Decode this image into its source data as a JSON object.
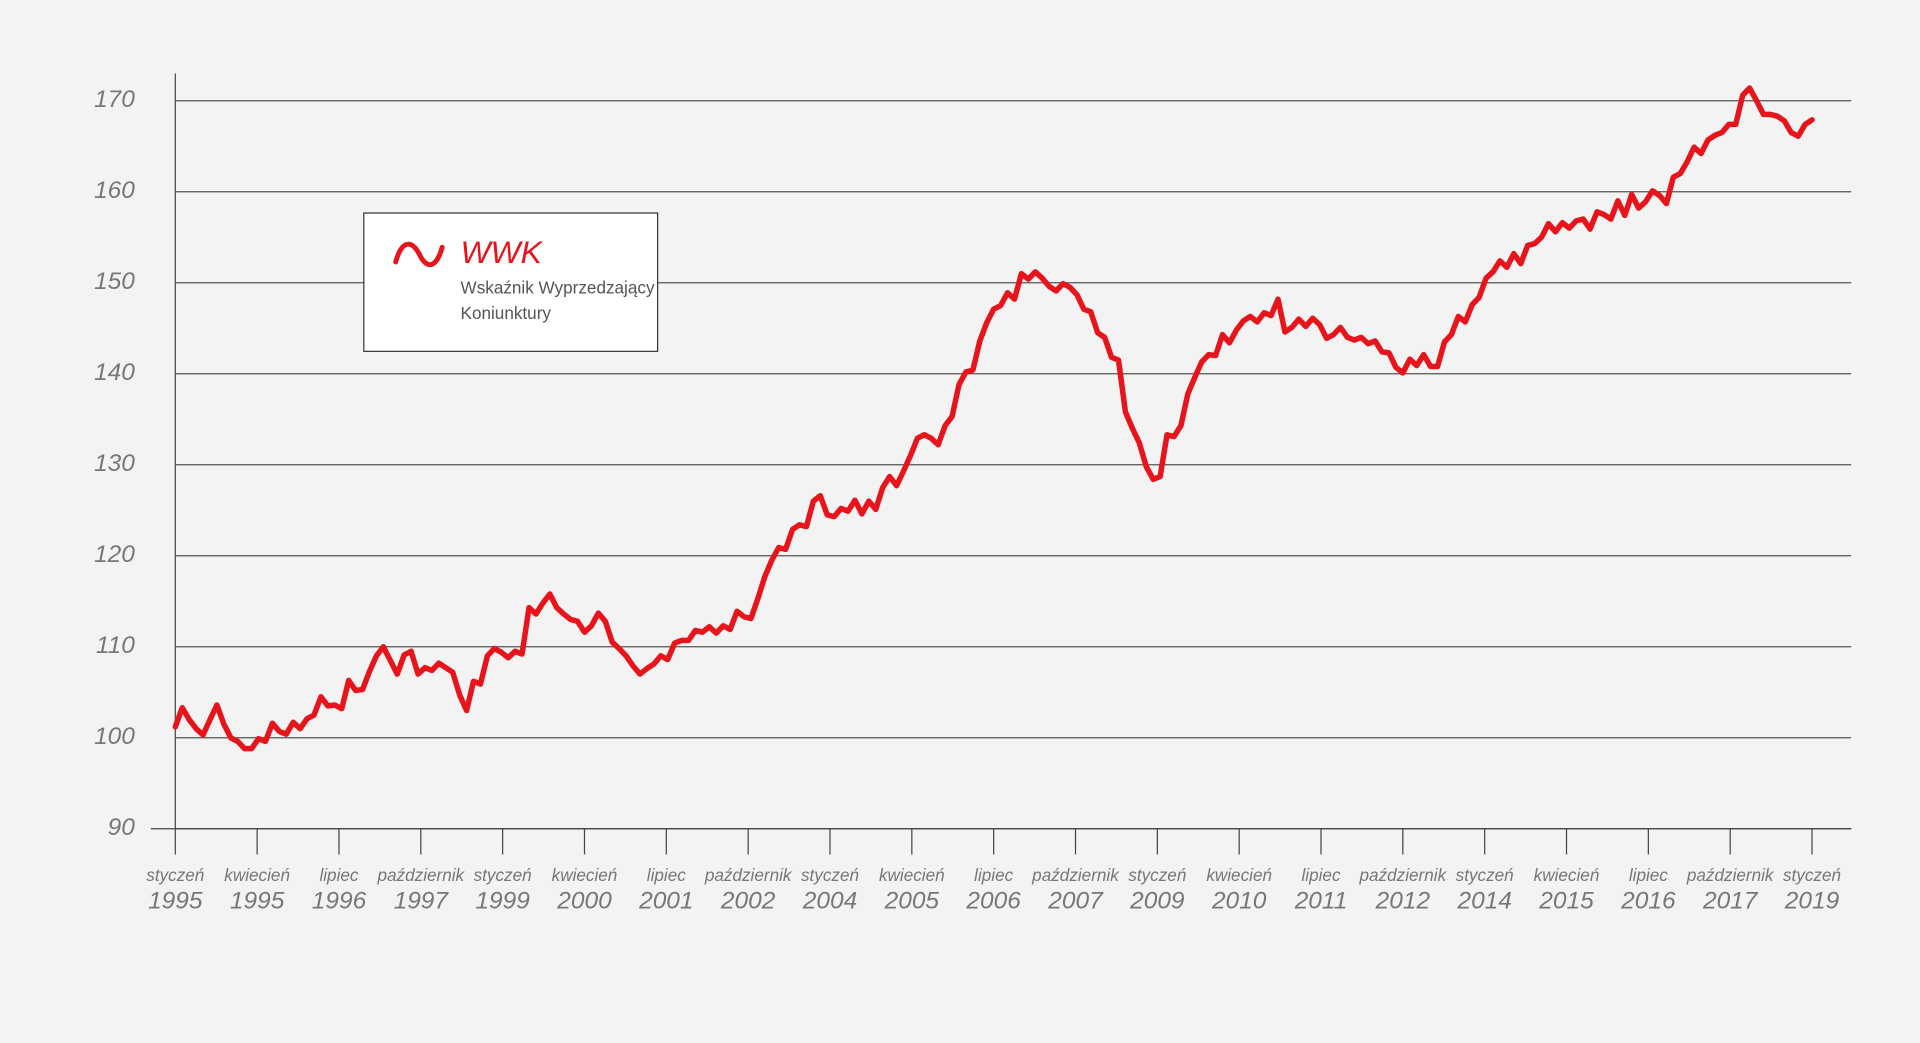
{
  "chart_data": {
    "type": "line",
    "legend_description": [
      "Wskaźnik Wyprzedzający",
      "Koniunktury"
    ],
    "x_labels": [
      {
        "month": "styczeń",
        "year": "1995"
      },
      {
        "month": "kwiecień",
        "year": "1995"
      },
      {
        "month": "lipiec",
        "year": "1996"
      },
      {
        "month": "październik",
        "year": "1997"
      },
      {
        "month": "styczeń",
        "year": "1999"
      },
      {
        "month": "kwiecień",
        "year": "2000"
      },
      {
        "month": "lipiec",
        "year": "2001"
      },
      {
        "month": "październik",
        "year": "2002"
      },
      {
        "month": "styczeń",
        "year": "2004"
      },
      {
        "month": "kwiecień",
        "year": "2005"
      },
      {
        "month": "lipiec",
        "year": "2006"
      },
      {
        "month": "październik",
        "year": "2007"
      },
      {
        "month": "styczeń",
        "year": "2009"
      },
      {
        "month": "kwiecień",
        "year": "2010"
      },
      {
        "month": "lipiec",
        "year": "2011"
      },
      {
        "month": "październik",
        "year": "2012"
      },
      {
        "month": "styczeń",
        "year": "2014"
      },
      {
        "month": "kwiecień",
        "year": "2015"
      },
      {
        "month": "lipiec",
        "year": "2016"
      },
      {
        "month": "październik",
        "year": "2017"
      },
      {
        "month": "styczeń",
        "year": "2019"
      }
    ],
    "series": [
      {
        "name": "WWK",
        "color": "#e8141b",
        "values": [
          101.2,
          103.3,
          102,
          101,
          100.3,
          102,
          103.6,
          101.5,
          100,
          99.6,
          98.8,
          98.8,
          99.9,
          99.6,
          101.6,
          100.7,
          100.4,
          101.7,
          101,
          102.1,
          102.5,
          104.5,
          103.5,
          103.6,
          103.2,
          106.3,
          105.2,
          105.3,
          107.3,
          109,
          110,
          108.5,
          107,
          109.1,
          109.5,
          107,
          107.7,
          107.4,
          108.2,
          107.7,
          107.2,
          104.7,
          103,
          106.2,
          105.9,
          109,
          109.8,
          109.4,
          108.8,
          109.5,
          109.2,
          114.3,
          113.6,
          114.8,
          115.8,
          114.3,
          113.6,
          113,
          112.8,
          111.6,
          112.3,
          113.7,
          112.8,
          110.5,
          109.8,
          109,
          107.9,
          107,
          107.6,
          108.1,
          109,
          108.6,
          110.4,
          110.7,
          110.7,
          111.8,
          111.6,
          112.2,
          111.5,
          112.3,
          111.9,
          113.9,
          113.3,
          113.1,
          115.3,
          117.7,
          119.5,
          120.9,
          120.7,
          122.9,
          123.4,
          123.2,
          126,
          126.6,
          124.5,
          124.3,
          125.2,
          124.9,
          126.1,
          124.6,
          126,
          125.1,
          127.5,
          128.7,
          127.7,
          129.3,
          131,
          132.9,
          133.3,
          132.9,
          132.2,
          134.3,
          135.3,
          138.8,
          140.2,
          140.4,
          143.6,
          145.6,
          147.1,
          147.5,
          148.9,
          148.2,
          151,
          150.4,
          151.2,
          150.5,
          149.6,
          149.1,
          149.9,
          149.5,
          148.7,
          147.1,
          146.8,
          144.5,
          144,
          141.8,
          141.5,
          135.8,
          134,
          132.4,
          129.8,
          128.4,
          128.7,
          133.3,
          133.1,
          134.3,
          137.8,
          139.6,
          141.3,
          142.1,
          142,
          144.3,
          143.4,
          144.8,
          145.8,
          146.3,
          145.7,
          146.7,
          146.4,
          148.2,
          144.6,
          145.1,
          146,
          145.2,
          146.1,
          145.4,
          143.9,
          144.3,
          145.1,
          144,
          143.7,
          144,
          143.3,
          143.6,
          142.4,
          142.3,
          140.7,
          140.1,
          141.6,
          140.9,
          142.1,
          140.8,
          140.8,
          143.5,
          144.3,
          146.3,
          145.7,
          147.6,
          148.4,
          150.5,
          151.2,
          152.4,
          151.7,
          153.2,
          152.1,
          154.1,
          154.3,
          155,
          156.5,
          155.6,
          156.6,
          156,
          156.8,
          157,
          155.9,
          157.8,
          157.5,
          157,
          159,
          157.4,
          159.7,
          158.2,
          158.9,
          160.1,
          159.6,
          158.7,
          161.6,
          162,
          163.3,
          164.9,
          164.2,
          165.7,
          166.2,
          166.5,
          167.4,
          167.4,
          170.6,
          171.4,
          170,
          168.5,
          168.5,
          168.3,
          167.8,
          166.5,
          166.1,
          167.4,
          167.9
        ]
      }
    ],
    "ylim": [
      90,
      173
    ],
    "yticks": [
      90,
      100,
      110,
      120,
      130,
      140,
      150,
      160,
      170
    ],
    "grid": true
  }
}
